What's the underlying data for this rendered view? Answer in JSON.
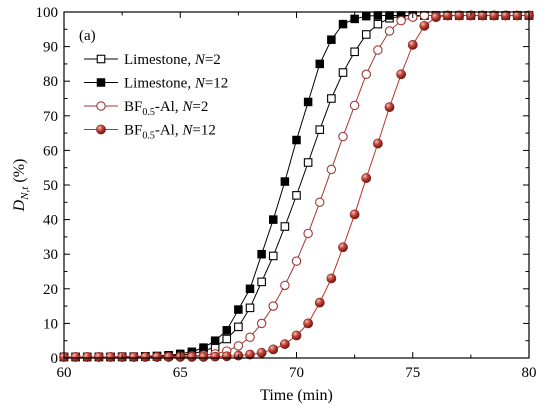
{
  "chart_data": {
    "type": "line",
    "panel_label": "(a)",
    "xlabel": "Time (min)",
    "ylabel": {
      "main": "D",
      "subscript": "N,t",
      "suffix": " (%)"
    },
    "xlim": [
      60,
      80
    ],
    "ylim": [
      0,
      100
    ],
    "xticks": [
      60,
      65,
      70,
      75,
      80
    ],
    "yticks": [
      0,
      10,
      20,
      30,
      40,
      50,
      60,
      70,
      80,
      90,
      100
    ],
    "grid": false,
    "legend_position": "upper-left",
    "x": [
      60,
      60.5,
      61,
      61.5,
      62,
      62.5,
      63,
      63.5,
      64,
      64.5,
      65,
      65.5,
      66,
      66.5,
      67,
      67.5,
      68,
      68.5,
      69,
      69.5,
      70,
      70.5,
      71,
      71.5,
      72,
      72.5,
      73,
      73.5,
      74,
      74.5,
      75,
      75.5,
      76,
      76.5,
      77,
      77.5,
      78,
      78.5,
      79,
      79.5,
      80
    ],
    "series": [
      {
        "name": "Limestone, N=2",
        "legend": {
          "pre": "Limestone, ",
          "italic": "N",
          "post": "=2"
        },
        "marker": "square-open",
        "color": "#000000",
        "values": [
          0.3,
          0.3,
          0.3,
          0.3,
          0.3,
          0.3,
          0.3,
          0.4,
          0.4,
          0.6,
          0.8,
          1.2,
          2,
          3.2,
          5.5,
          9,
          14.5,
          22,
          29.5,
          38,
          47,
          56.5,
          66,
          75,
          82.5,
          88.5,
          93.5,
          96.5,
          98.2,
          98.8,
          99,
          99,
          99,
          99,
          99,
          99,
          99,
          99,
          99,
          99,
          99
        ]
      },
      {
        "name": "Limestone, N=12",
        "legend": {
          "pre": "Limestone, ",
          "italic": "N",
          "post": "=12"
        },
        "marker": "square-filled",
        "color": "#000000",
        "values": [
          0.3,
          0.3,
          0.3,
          0.3,
          0.3,
          0.4,
          0.4,
          0.5,
          0.6,
          0.8,
          1.2,
          1.8,
          3,
          5,
          8,
          14,
          20,
          30,
          40,
          51,
          63,
          74,
          85,
          92,
          96.5,
          98,
          98.8,
          99,
          99,
          99,
          99,
          99,
          99,
          99,
          99,
          99,
          99,
          99,
          99,
          99,
          99
        ]
      },
      {
        "name": "BF0.5-Al, N=2",
        "legend": {
          "pre": "BF",
          "sub": "0.5",
          "mid": "-Al, ",
          "italic": "N",
          "post": "=2"
        },
        "marker": "circle-open",
        "color": "#a03a34",
        "values": [
          0.3,
          0.3,
          0.3,
          0.3,
          0.3,
          0.3,
          0.3,
          0.3,
          0.3,
          0.4,
          0.5,
          0.6,
          0.8,
          1.2,
          2,
          3.5,
          6,
          10,
          15,
          21,
          28,
          36,
          45,
          54.5,
          64,
          73,
          82,
          89,
          94.5,
          97.5,
          98.5,
          99,
          99,
          99,
          99,
          99,
          99,
          99,
          99,
          99,
          99
        ]
      },
      {
        "name": "BF0.5-Al, N=12",
        "legend": {
          "pre": "BF",
          "sub": "0.5",
          "mid": "-Al, ",
          "italic": "N",
          "post": "=12"
        },
        "marker": "circle-filled",
        "color": "#b8352c",
        "values": [
          0.3,
          0.3,
          0.3,
          0.3,
          0.3,
          0.3,
          0.3,
          0.3,
          0.3,
          0.3,
          0.3,
          0.3,
          0.3,
          0.4,
          0.5,
          0.7,
          1,
          1.5,
          2.5,
          4,
          6.5,
          10,
          16,
          23,
          32,
          41.5,
          52,
          62,
          72.5,
          82,
          90.5,
          96,
          98.5,
          99,
          99,
          99,
          99,
          99,
          99,
          99,
          99
        ]
      }
    ]
  }
}
